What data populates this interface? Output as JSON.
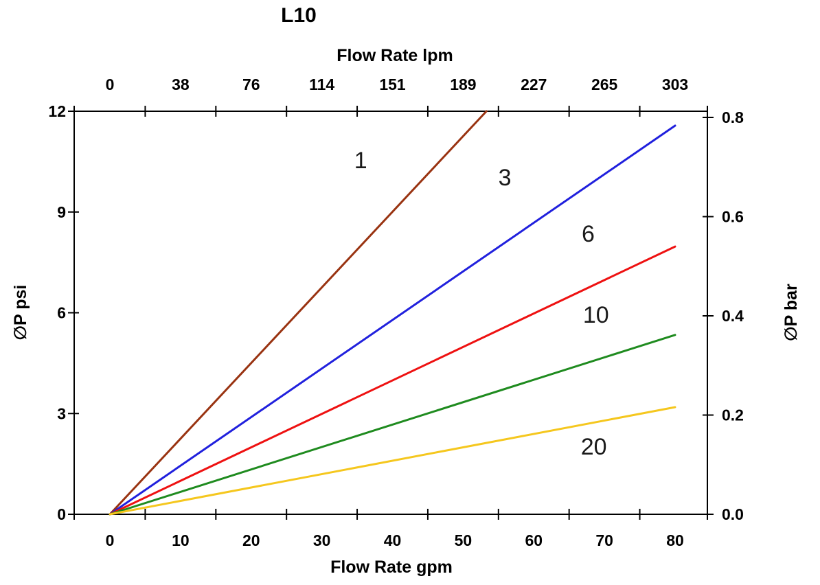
{
  "page": {
    "title": "L10"
  },
  "chart_data": {
    "type": "line",
    "title": "L10",
    "grid": false,
    "legend": "none (lines labeled inline with micron ratings)",
    "axes": {
      "bottom": {
        "label": "Flow Rate gpm",
        "tick_labels": [
          0,
          10,
          20,
          30,
          40,
          50,
          60,
          70,
          80
        ],
        "minor_tick_gpm": [
          5,
          15,
          25,
          35,
          45,
          55,
          65,
          75
        ],
        "range_gpm": [
          -5,
          84.5
        ]
      },
      "top": {
        "label": "Flow Rate lpm",
        "tick_labels": [
          0,
          38,
          76,
          114,
          151,
          189,
          227,
          265,
          303
        ]
      },
      "left": {
        "label": "∅P psi",
        "tick_labels": [
          0,
          3,
          6,
          9,
          12
        ],
        "range_psi": [
          0,
          12
        ]
      },
      "right": {
        "label": "∅P bar",
        "tick_labels": [
          "0.0",
          "0.2",
          "0.4",
          "0.6",
          "0.8"
        ],
        "range_bar": [
          0,
          0.8
        ]
      }
    },
    "series": [
      {
        "label": "1",
        "color": "#993311",
        "points_gpm_psi": [
          [
            0,
            0
          ],
          [
            53.3,
            12.0
          ]
        ],
        "label_at_gpm_psi": [
          35.5,
          10.55
        ]
      },
      {
        "label": "3",
        "color": "#2020DD",
        "points_gpm_psi": [
          [
            0,
            0
          ],
          [
            80,
            11.57
          ]
        ],
        "label_at_gpm_psi": [
          55.9,
          10.04
        ]
      },
      {
        "label": "6",
        "color": "#EE1111",
        "points_gpm_psi": [
          [
            0,
            0
          ],
          [
            80,
            7.97
          ]
        ],
        "label_at_gpm_psi": [
          67.7,
          8.36
        ]
      },
      {
        "label": "10",
        "color": "#1F8B1F",
        "points_gpm_psi": [
          [
            0,
            0
          ],
          [
            80,
            5.34
          ]
        ],
        "label_at_gpm_psi": [
          68.8,
          5.95
        ]
      },
      {
        "label": "20",
        "color": "#F5C71E",
        "points_gpm_psi": [
          [
            0,
            0
          ],
          [
            80,
            3.19
          ]
        ],
        "label_at_gpm_psi": [
          68.5,
          2.02
        ]
      }
    ],
    "axis_color": "#000000",
    "background_color": "#ffffff"
  }
}
